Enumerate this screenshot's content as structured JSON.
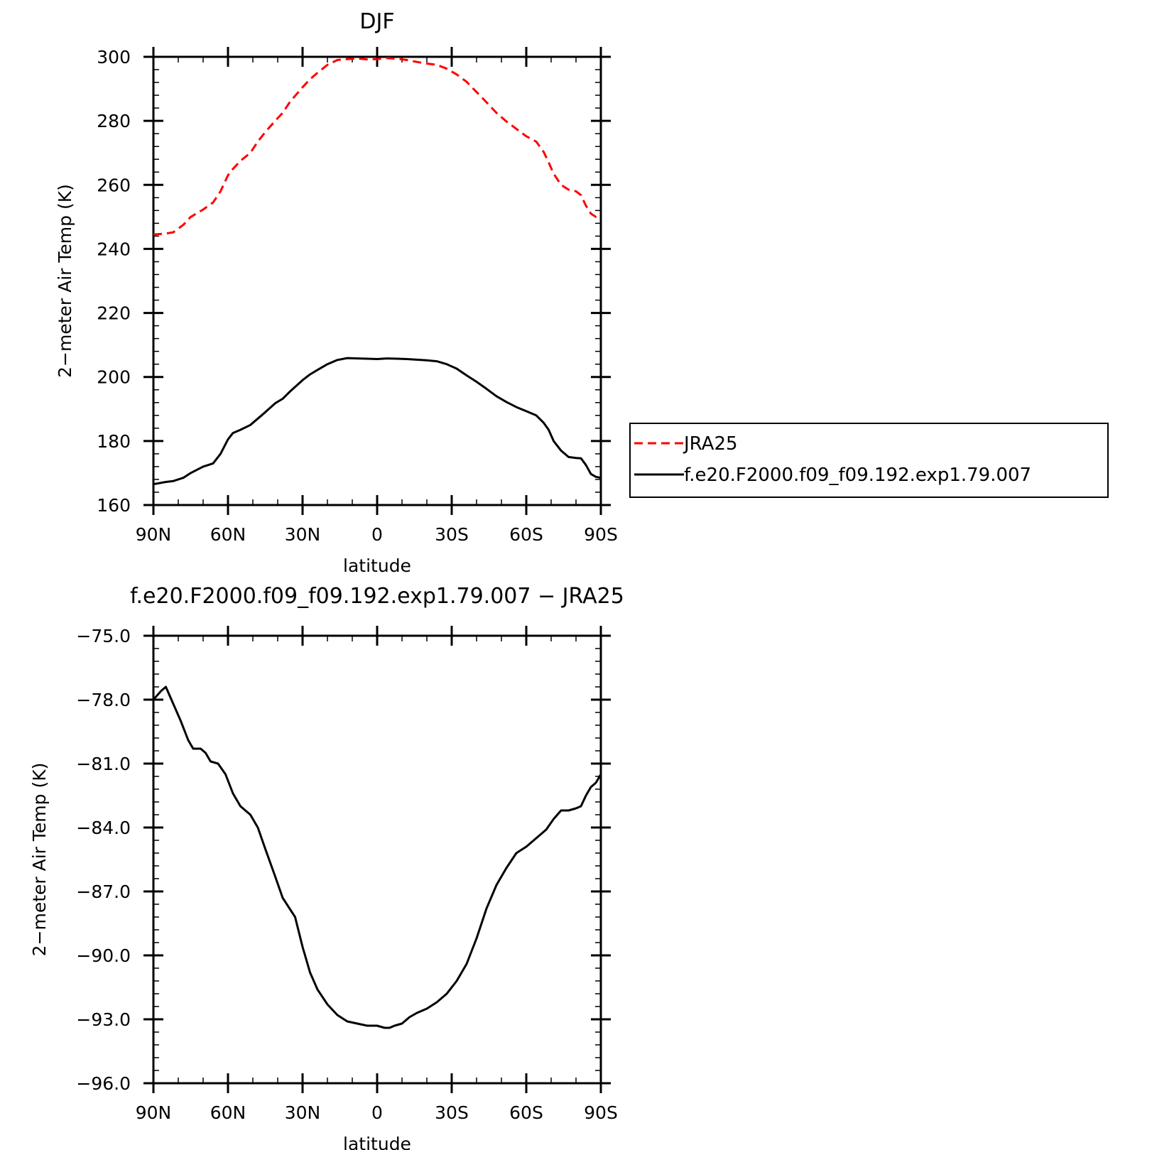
{
  "chart_data": [
    {
      "type": "line",
      "title": "DJF",
      "xlabel": "latitude",
      "ylabel": "2−meter Air Temp (K)",
      "x_tick_values": [
        -90,
        -60,
        -30,
        0,
        30,
        60,
        90
      ],
      "x_tick_labels": [
        "90N",
        "60N",
        "30N",
        "0",
        "30S",
        "60S",
        "90S"
      ],
      "xlim": [
        -90,
        90
      ],
      "y_tick_values": [
        160,
        180,
        200,
        220,
        240,
        260,
        280,
        300
      ],
      "y_tick_labels": [
        "160",
        "180",
        "200",
        "220",
        "240",
        "260",
        "280",
        "300"
      ],
      "ylim": [
        160,
        300
      ],
      "y_minor_step": 4,
      "x_minor_step": 10,
      "grid": false,
      "legend": "right",
      "series": [
        {
          "name": "JRA25",
          "color": "#ff0000",
          "dash": true,
          "x": [
            -90,
            -85,
            -82,
            -78,
            -75,
            -70,
            -66,
            -63,
            -60,
            -58,
            -55,
            -51,
            -48,
            -45,
            -41,
            -38,
            -35,
            -30,
            -27,
            -24,
            -20,
            -16,
            -12,
            -8,
            -4,
            0,
            4,
            8,
            12,
            16,
            20,
            24,
            28,
            32,
            36,
            40,
            44,
            48,
            52,
            56,
            60,
            64,
            67,
            69,
            71,
            74,
            77,
            80,
            82,
            84,
            86,
            88,
            90
          ],
          "values": [
            244.5,
            244.8,
            245.2,
            247.5,
            250.0,
            252.3,
            254.5,
            258.0,
            263.0,
            265.0,
            267.5,
            270.0,
            273.5,
            276.5,
            280.0,
            282.5,
            286.0,
            290.5,
            293.0,
            295.0,
            297.5,
            299.0,
            299.3,
            299.5,
            299.2,
            299.3,
            299.6,
            299.4,
            299.0,
            298.4,
            297.9,
            297.5,
            296.3,
            294.5,
            292.2,
            289.0,
            285.8,
            282.5,
            279.8,
            277.5,
            275.2,
            273.5,
            270.3,
            267.0,
            263.5,
            260.0,
            258.5,
            258.0,
            256.8,
            253.5,
            251.0,
            250.0,
            249.5
          ]
        },
        {
          "name": "f.e20.F2000.f09_f09.192.exp1.79.007",
          "color": "#000000",
          "dash": false,
          "x": [
            -90,
            -85,
            -82,
            -78,
            -75,
            -70,
            -66,
            -63,
            -60,
            -58,
            -55,
            -51,
            -48,
            -45,
            -41,
            -38,
            -35,
            -30,
            -27,
            -24,
            -20,
            -16,
            -12,
            -8,
            -4,
            0,
            4,
            8,
            12,
            16,
            20,
            24,
            28,
            32,
            36,
            40,
            44,
            48,
            52,
            56,
            60,
            64,
            67,
            69,
            71,
            74,
            77,
            80,
            82,
            84,
            86,
            88,
            90
          ],
          "values": [
            166.5,
            167.2,
            167.5,
            168.5,
            170.0,
            172.0,
            173.0,
            176.0,
            180.5,
            182.5,
            183.5,
            185.0,
            187.0,
            189.0,
            191.8,
            193.2,
            195.5,
            199.0,
            200.8,
            202.2,
            204.0,
            205.3,
            205.9,
            205.8,
            205.7,
            205.6,
            205.8,
            205.7,
            205.6,
            205.4,
            205.2,
            204.9,
            204.0,
            202.6,
            200.5,
            198.5,
            196.3,
            194.0,
            192.2,
            190.6,
            189.3,
            188.0,
            185.7,
            183.5,
            180.0,
            177.0,
            175.0,
            174.7,
            174.6,
            172.5,
            169.7,
            168.8,
            168.5
          ]
        }
      ]
    },
    {
      "type": "line",
      "title": "f.e20.F2000.f09_f09.192.exp1.79.007 − JRA25",
      "xlabel": "latitude",
      "ylabel": "2−meter Air Temp (K)",
      "x_tick_values": [
        -90,
        -60,
        -30,
        0,
        30,
        60,
        90
      ],
      "x_tick_labels": [
        "90N",
        "60N",
        "30N",
        "0",
        "30S",
        "60S",
        "90S"
      ],
      "xlim": [
        -90,
        90
      ],
      "y_tick_values": [
        -96,
        -93,
        -90,
        -87,
        -84,
        -81,
        -78,
        -75
      ],
      "y_tick_labels": [
        "−96.0",
        "−93.0",
        "−90.0",
        "−87.0",
        "−84.0",
        "−81.0",
        "−78.0",
        "−75.0"
      ],
      "ylim": [
        -96,
        -75
      ],
      "y_minor_step": 0.6,
      "x_minor_step": 10,
      "grid": false,
      "legend": "none",
      "series": [
        {
          "name": "",
          "color": "#000000",
          "dash": false,
          "x": [
            -90,
            -87,
            -85,
            -82,
            -79,
            -76,
            -74,
            -71,
            -69,
            -67,
            -64,
            -61,
            -58,
            -55,
            -51,
            -48,
            -45,
            -41,
            -38,
            -33,
            -30,
            -27,
            -24,
            -20,
            -16,
            -12,
            -8,
            -4,
            0,
            3,
            5,
            7,
            10,
            13,
            16,
            20,
            24,
            28,
            32,
            36,
            40,
            44,
            48,
            52,
            56,
            60,
            64,
            68,
            71,
            74,
            77,
            80,
            82,
            84,
            86,
            88,
            90
          ],
          "values": [
            -78.0,
            -77.6,
            -77.4,
            -78.2,
            -79.0,
            -79.9,
            -80.3,
            -80.3,
            -80.5,
            -80.9,
            -81.0,
            -81.5,
            -82.4,
            -83.0,
            -83.4,
            -84.0,
            -85.0,
            -86.3,
            -87.3,
            -88.2,
            -89.6,
            -90.8,
            -91.6,
            -92.3,
            -92.8,
            -93.1,
            -93.2,
            -93.3,
            -93.3,
            -93.4,
            -93.4,
            -93.3,
            -93.2,
            -92.9,
            -92.7,
            -92.5,
            -92.2,
            -91.8,
            -91.2,
            -90.4,
            -89.2,
            -87.8,
            -86.7,
            -85.9,
            -85.2,
            -84.9,
            -84.5,
            -84.1,
            -83.6,
            -83.2,
            -83.2,
            -83.1,
            -83.0,
            -82.5,
            -82.1,
            -81.9,
            -81.5
          ]
        }
      ]
    }
  ]
}
